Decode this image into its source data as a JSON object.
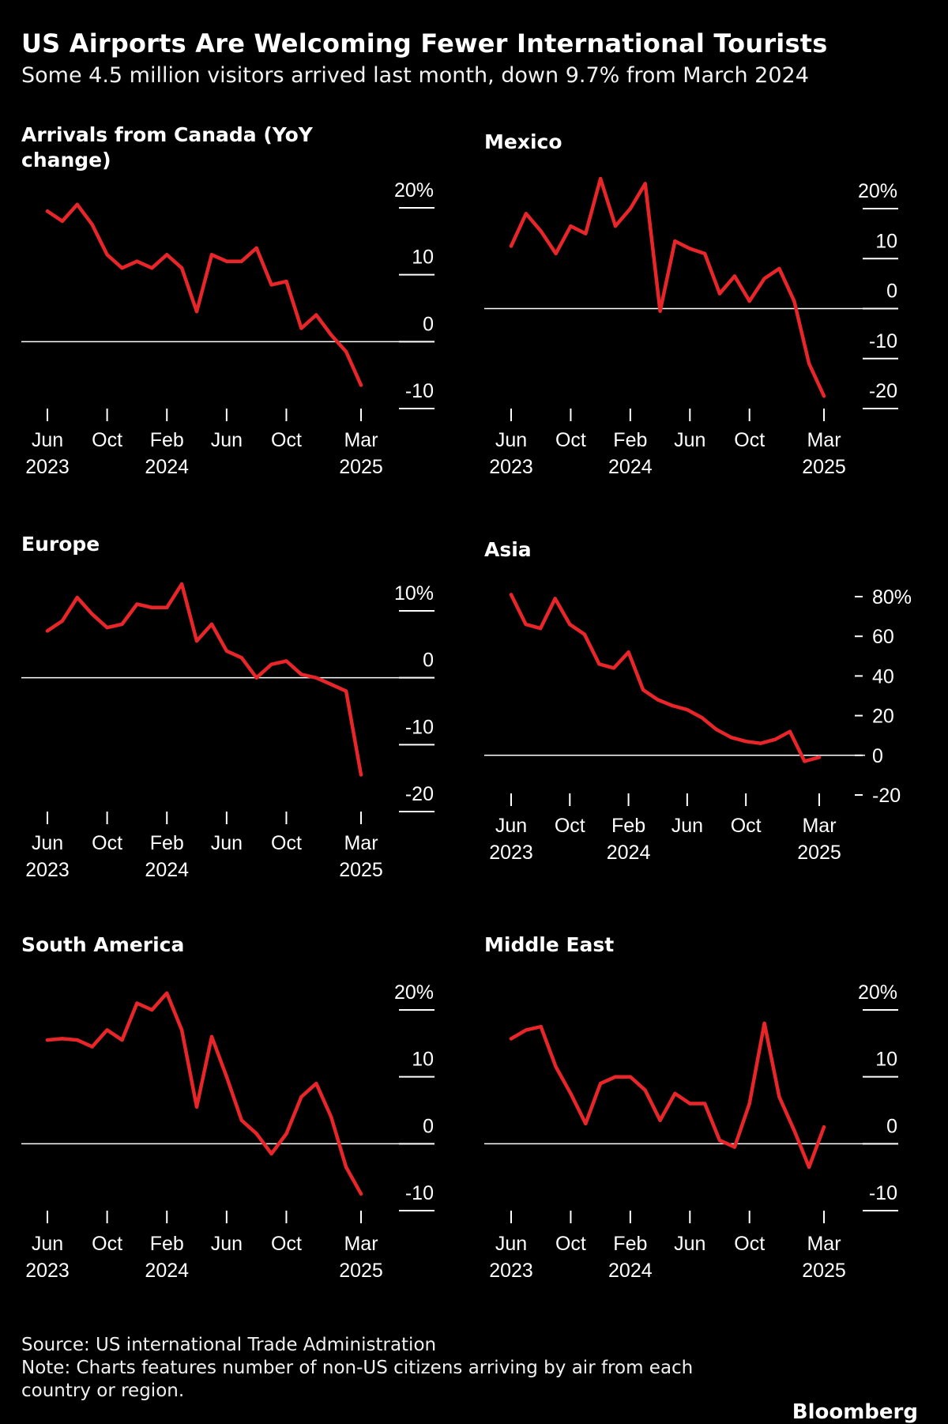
{
  "title": "US Airports Are Welcoming Fewer International Tourists",
  "subtitle": "Some 4.5 million visitors arrived last month, down 9.7% from March 2024",
  "source": "Source: US international Trade Administration",
  "note": "Note: Charts features number of non-US citizens arriving by air from each country or region.",
  "brand": "Bloomberg",
  "colors": {
    "background": "#000000",
    "line": "#e8262a",
    "text": "#ffffff",
    "zero_line": "#ffffff"
  },
  "x_ticks": [
    {
      "month": "Jun",
      "year": "2023"
    },
    {
      "month": "Oct",
      "year": ""
    },
    {
      "month": "Feb",
      "year": "2024"
    },
    {
      "month": "Jun",
      "year": ""
    },
    {
      "month": "Oct",
      "year": ""
    },
    {
      "month": "Mar",
      "year": "2025"
    }
  ],
  "chart_data": [
    {
      "type": "line",
      "title": "Arrivals from Canada (YoY change)",
      "x": [
        "2023-06",
        "2023-07",
        "2023-08",
        "2023-09",
        "2023-10",
        "2023-11",
        "2023-12",
        "2024-01",
        "2024-02",
        "2024-03",
        "2024-04",
        "2024-05",
        "2024-06",
        "2024-07",
        "2024-08",
        "2024-09",
        "2024-10",
        "2024-11",
        "2024-12",
        "2025-01",
        "2025-02",
        "2025-03"
      ],
      "values": [
        19.5,
        18,
        20.5,
        17.5,
        13,
        11,
        12,
        11,
        13,
        11,
        4.5,
        13,
        12,
        12,
        14,
        8.5,
        9,
        2,
        4,
        1,
        -1.5,
        -6.5
      ],
      "ylim": [
        -10,
        20
      ],
      "y_ticks": [
        "20%",
        "10",
        "0",
        "-10"
      ],
      "tick_style": "right-line",
      "grid": false
    },
    {
      "type": "line",
      "title": "Mexico",
      "x": [
        "2023-06",
        "2023-07",
        "2023-08",
        "2023-09",
        "2023-10",
        "2023-11",
        "2023-12",
        "2024-01",
        "2024-02",
        "2024-03",
        "2024-04",
        "2024-05",
        "2024-06",
        "2024-07",
        "2024-08",
        "2024-09",
        "2024-10",
        "2024-11",
        "2024-12",
        "2025-01",
        "2025-02",
        "2025-03"
      ],
      "values": [
        12.5,
        19,
        15.5,
        11,
        16.5,
        15,
        26,
        16.5,
        20,
        25,
        -0.5,
        13.5,
        12,
        11,
        3,
        6.5,
        1.5,
        6,
        8,
        1.5,
        -11,
        -17.5
      ],
      "ylim": [
        -20,
        20
      ],
      "y_ticks": [
        "20%",
        "10",
        "0",
        "-10",
        "-20"
      ],
      "tick_style": "right-line",
      "grid": false
    },
    {
      "type": "line",
      "title": "Europe",
      "x": [
        "2023-06",
        "2023-07",
        "2023-08",
        "2023-09",
        "2023-10",
        "2023-11",
        "2023-12",
        "2024-01",
        "2024-02",
        "2024-03",
        "2024-04",
        "2024-05",
        "2024-06",
        "2024-07",
        "2024-08",
        "2024-09",
        "2024-10",
        "2024-11",
        "2024-12",
        "2025-01",
        "2025-02",
        "2025-03"
      ],
      "values": [
        7,
        8.5,
        12,
        9.5,
        7.5,
        8,
        11,
        10.5,
        10.5,
        14,
        5.5,
        8,
        4,
        3,
        0,
        2,
        2.5,
        0.5,
        0,
        -1,
        -2,
        -14.5
      ],
      "ylim": [
        -20,
        10
      ],
      "y_ticks": [
        "10%",
        "0",
        "-10",
        "-20"
      ],
      "tick_style": "right-line",
      "grid": false
    },
    {
      "type": "line",
      "title": "Asia",
      "x": [
        "2023-06",
        "2023-07",
        "2023-08",
        "2023-09",
        "2023-10",
        "2023-11",
        "2023-12",
        "2024-01",
        "2024-02",
        "2024-03",
        "2024-04",
        "2024-05",
        "2024-06",
        "2024-07",
        "2024-08",
        "2024-09",
        "2024-10",
        "2024-11",
        "2024-12",
        "2025-01",
        "2025-02",
        "2025-03"
      ],
      "values": [
        81,
        66,
        64,
        79,
        66,
        61,
        46,
        44,
        52,
        33,
        28,
        25,
        23,
        19,
        13,
        9,
        7,
        6,
        8,
        12,
        -3,
        -1
      ],
      "ylim": [
        -20,
        80
      ],
      "y_ticks": [
        "80%",
        "60",
        "40",
        "20",
        "0",
        "-20"
      ],
      "tick_style": "left-dash",
      "grid": false
    },
    {
      "type": "line",
      "title": "South America",
      "x": [
        "2023-06",
        "2023-07",
        "2023-08",
        "2023-09",
        "2023-10",
        "2023-11",
        "2023-12",
        "2024-01",
        "2024-02",
        "2024-03",
        "2024-04",
        "2024-05",
        "2024-06",
        "2024-07",
        "2024-08",
        "2024-09",
        "2024-10",
        "2024-11",
        "2024-12",
        "2025-01",
        "2025-02",
        "2025-03"
      ],
      "values": [
        15.5,
        15.7,
        15.5,
        14.5,
        17,
        15.5,
        21,
        20,
        22.5,
        17,
        5.5,
        16,
        10,
        3.5,
        1.5,
        -1.5,
        1.5,
        7,
        9,
        4,
        -3.5,
        -7.5
      ],
      "ylim": [
        -10,
        20
      ],
      "y_ticks": [
        "20%",
        "10",
        "0",
        "-10"
      ],
      "tick_style": "right-line",
      "grid": false
    },
    {
      "type": "line",
      "title": "Middle East",
      "x": [
        "2023-06",
        "2023-07",
        "2023-08",
        "2023-09",
        "2023-10",
        "2023-11",
        "2023-12",
        "2024-01",
        "2024-02",
        "2024-03",
        "2024-04",
        "2024-05",
        "2024-06",
        "2024-07",
        "2024-08",
        "2024-09",
        "2024-10",
        "2024-11",
        "2024-12",
        "2025-01",
        "2025-02",
        "2025-03"
      ],
      "values": [
        15.7,
        17,
        17.5,
        11.5,
        7.5,
        3,
        9,
        10,
        10,
        8,
        3.5,
        7.5,
        6,
        6,
        0.5,
        -0.5,
        6,
        18,
        7,
        2,
        -3.5,
        2.5
      ],
      "ylim": [
        -10,
        20
      ],
      "y_ticks": [
        "20%",
        "10",
        "0",
        "-10"
      ],
      "tick_style": "right-line",
      "grid": false
    }
  ]
}
